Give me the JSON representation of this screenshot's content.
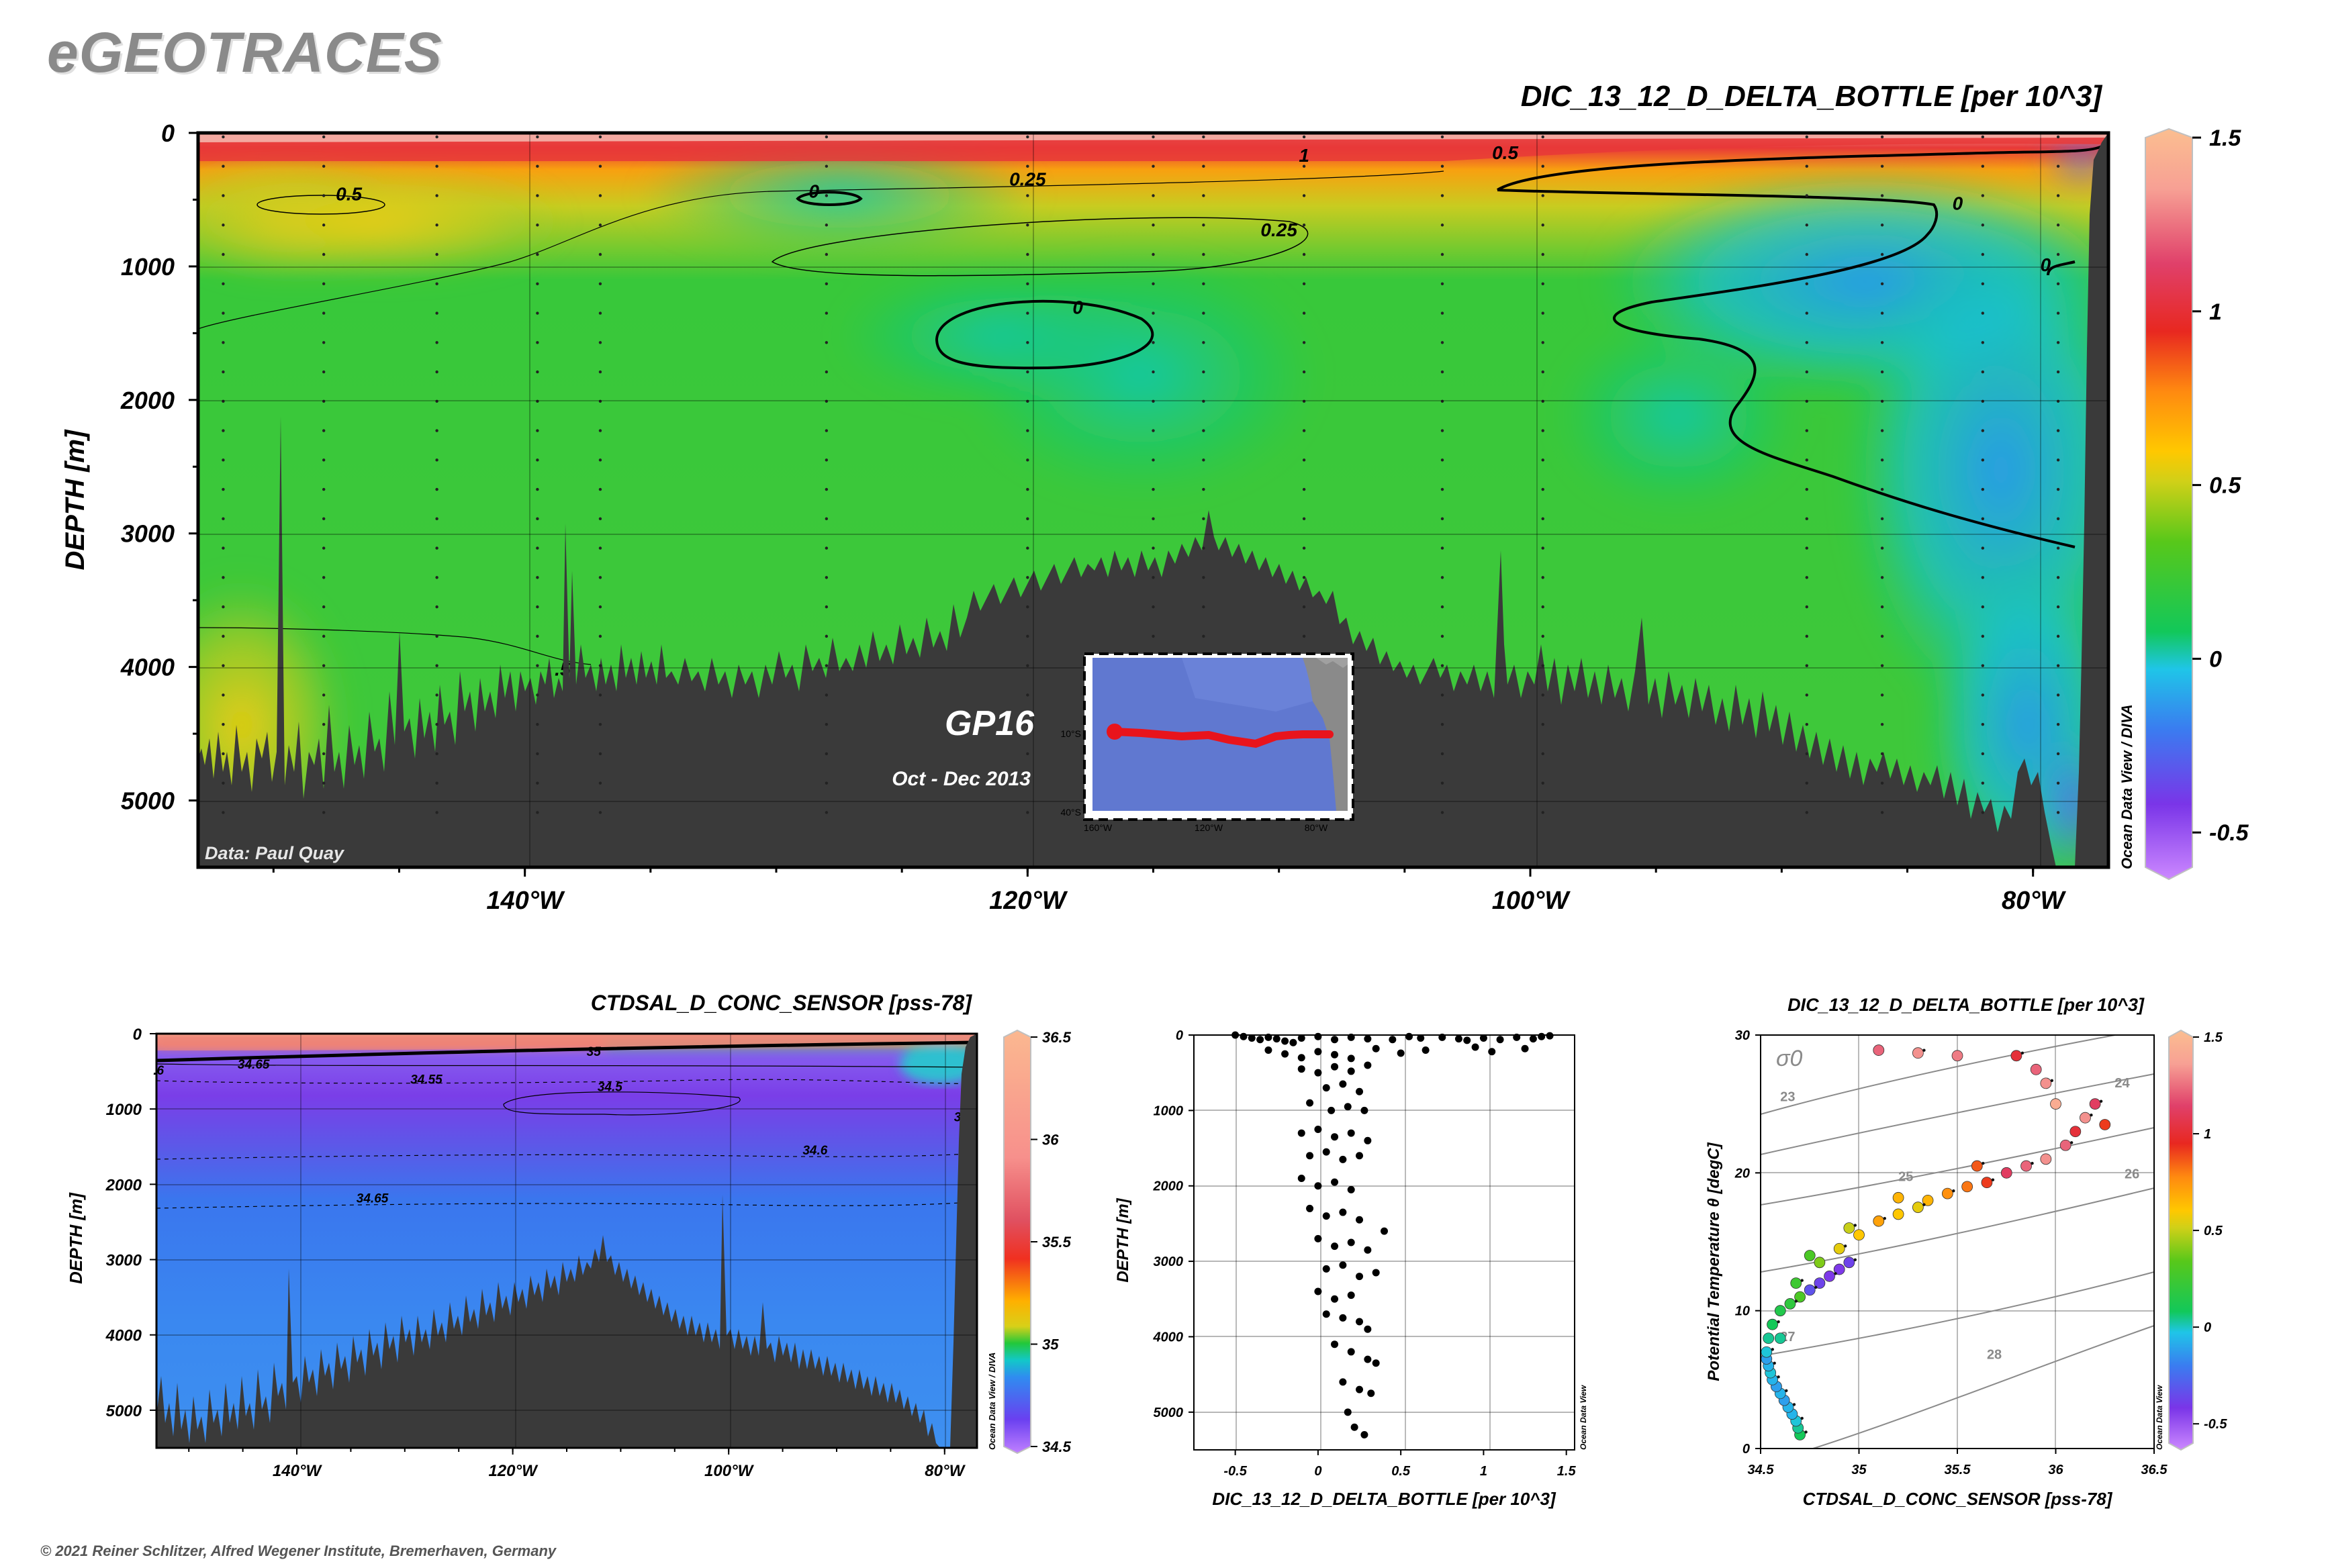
{
  "header": {
    "logo": "eGEOTRACES",
    "copyright": "© 2021 Reiner Schlitzer, Alfred Wegener Institute, Bremerhaven, Germany"
  },
  "main_section": {
    "title": "DIC_13_12_D_DELTA_BOTTLE [per 10^3]",
    "ylabel": "DEPTH [m]",
    "credit": "Data: Paul Quay",
    "cruise": "GP16",
    "dates": "Oct - Dec 2013",
    "watermark": "Ocean Data View / DIVA",
    "inset_labels": {
      "lat1": "10°S",
      "lat2": "40°S",
      "lon1": "160°W",
      "lon2": "120°W",
      "lon3": "80°W"
    }
  },
  "salinity_section": {
    "title": "CTDSAL_D_CONC_SENSOR [pss-78]",
    "ylabel": "DEPTH [m]",
    "watermark": "Ocean Data View / DIVA"
  },
  "profile_plot": {
    "xlabel": "DIC_13_12_D_DELTA_BOTTLE [per 10^3]",
    "ylabel": "DEPTH [m]",
    "watermark": "Ocean Data View"
  },
  "ts_plot": {
    "title": "DIC_13_12_D_DELTA_BOTTLE [per 10^3]",
    "xlabel": "CTDSAL_D_CONC_SENSOR [pss-78]",
    "ylabel": "Potential Temperature θ [degC]",
    "sigma_symbol": "σ0",
    "watermark": "Ocean Data View"
  },
  "colors": {
    "bathymetry": "#3a3a3a",
    "contour": "#000000",
    "track": "#e8141c"
  },
  "chart_data": [
    {
      "id": "main_section",
      "type": "heatmap",
      "title": "DIC_13_12_D_DELTA_BOTTLE [per 10^3]",
      "ylabel": "DEPTH [m]",
      "xlim": [
        -153,
        -77
      ],
      "ylim": [
        5500,
        0
      ],
      "xticks": [
        "140°W",
        "120°W",
        "100°W",
        "80°W"
      ],
      "xtick_values": [
        -140,
        -120,
        -100,
        -80
      ],
      "yticks": [
        "0",
        "1000",
        "2000",
        "3000",
        "4000",
        "5000"
      ],
      "ytick_values": [
        0,
        1000,
        2000,
        3000,
        4000,
        5000
      ],
      "colorbar": {
        "range": [
          -0.6,
          1.5
        ],
        "ticks": [
          "-0.5",
          "0",
          "0.5",
          "1",
          "1.5"
        ],
        "tick_values": [
          -0.5,
          0,
          0.5,
          1,
          1.5
        ]
      },
      "contour_labels": [
        "0.5",
        "0",
        "0.25",
        "1",
        "0.5",
        "0",
        "0.25",
        "0",
        "0",
        ".5"
      ],
      "contour_label_positions": [
        [
          -147,
          460
        ],
        [
          -128.5,
          440
        ],
        [
          -120,
          350
        ],
        [
          -109,
          170
        ],
        [
          -101,
          150
        ],
        [
          -83,
          530
        ],
        [
          -110,
          730
        ],
        [
          -118,
          1310
        ],
        [
          -79.5,
          990
        ],
        [
          -138.5,
          4020
        ]
      ],
      "fields": [
        {
          "x": -150,
          "y": 500,
          "v": 0.42
        },
        {
          "x": -148,
          "y": 2500,
          "v": 0.22
        },
        {
          "x": -150,
          "y": 4500,
          "v": 0.45
        },
        {
          "x": -140,
          "y": 400,
          "v": 0.4
        },
        {
          "x": -138,
          "y": 2000,
          "v": 0.2
        },
        {
          "x": -130,
          "y": 500,
          "v": 0.05
        },
        {
          "x": -125,
          "y": 1000,
          "v": 0.26
        },
        {
          "x": -118,
          "y": 1500,
          "v": -0.02
        },
        {
          "x": -110,
          "y": 1200,
          "v": 0.08
        },
        {
          "x": -112,
          "y": 2500,
          "v": 0.15
        },
        {
          "x": -100,
          "y": 700,
          "v": 0.06
        },
        {
          "x": -95,
          "y": 1800,
          "v": 0.1
        },
        {
          "x": -90,
          "y": 400,
          "v": -0.3
        },
        {
          "x": -86,
          "y": 1300,
          "v": -0.22
        },
        {
          "x": -82,
          "y": 2500,
          "v": -0.35
        },
        {
          "x": -79,
          "y": 4000,
          "v": -0.25
        },
        {
          "x": -90,
          "y": 3500,
          "v": 0.1
        },
        {
          "x": -143,
          "y": 3500,
          "v": 0.25
        }
      ]
    },
    {
      "id": "salinity_section",
      "type": "heatmap",
      "title": "CTDSAL_D_CONC_SENSOR [pss-78]",
      "ylabel": "DEPTH [m]",
      "xlim": [
        -153,
        -77
      ],
      "ylim": [
        5500,
        0
      ],
      "xticks": [
        "140°W",
        "120°W",
        "100°W",
        "80°W"
      ],
      "xtick_values": [
        -140,
        -120,
        -100,
        -80
      ],
      "yticks": [
        "0",
        "1000",
        "2000",
        "3000",
        "4000",
        "5000"
      ],
      "ytick_values": [
        0,
        1000,
        2000,
        3000,
        4000,
        5000
      ],
      "colorbar": {
        "range": [
          34.5,
          36.5
        ],
        "ticks": [
          "34.5",
          "35",
          "35.5",
          "36",
          "36.5"
        ],
        "tick_values": [
          34.5,
          35,
          35.5,
          36,
          36.5
        ]
      },
      "contour_labels": [
        "34.65",
        "34.55",
        "34.5",
        "34.6",
        "34.65",
        "35",
        ".6",
        "3"
      ],
      "contour_label_positions": [
        [
          -144,
          400
        ],
        [
          -128,
          600
        ],
        [
          -111,
          700
        ],
        [
          -92,
          1540
        ],
        [
          -133,
          2180
        ],
        [
          -112.5,
          230
        ],
        [
          -152.8,
          480
        ],
        [
          -78.8,
          1100
        ]
      ]
    },
    {
      "id": "profile_plot",
      "type": "scatter",
      "xlabel": "DIC_13_12_D_DELTA_BOTTLE [per 10^3]",
      "ylabel": "DEPTH [m]",
      "xlim": [
        -0.75,
        1.55
      ],
      "ylim": [
        5500,
        0
      ],
      "xticks": [
        "-0.5",
        "0",
        "0.5",
        "1",
        "1.5"
      ],
      "xtick_values": [
        -0.5,
        0,
        0.5,
        1,
        1.5
      ],
      "yticks": [
        "0",
        "1000",
        "2000",
        "3000",
        "4000",
        "5000"
      ],
      "ytick_values": [
        0,
        1000,
        2000,
        3000,
        4000,
        5000
      ],
      "x": [
        -0.5,
        -0.45,
        -0.4,
        -0.35,
        -0.3,
        -0.25,
        -0.2,
        -0.15,
        -0.1,
        0.0,
        0.1,
        0.2,
        0.3,
        0.45,
        0.55,
        0.62,
        0.75,
        0.85,
        0.9,
        1.0,
        1.1,
        1.2,
        1.3,
        1.35,
        1.4,
        -0.3,
        -0.2,
        -0.1,
        0.0,
        0.1,
        0.2,
        0.35,
        0.5,
        0.65,
        0.95,
        1.05,
        1.25,
        -0.1,
        0.0,
        0.1,
        0.2,
        0.3,
        0.05,
        0.15,
        0.25,
        -0.05,
        0.08,
        0.18,
        0.28,
        -0.1,
        0.0,
        0.1,
        0.2,
        0.3,
        -0.05,
        0.05,
        0.15,
        0.25,
        -0.1,
        0.0,
        0.1,
        0.2,
        -0.05,
        0.05,
        0.15,
        0.25,
        0.4,
        0.0,
        0.1,
        0.2,
        0.3,
        0.05,
        0.15,
        0.25,
        0.35,
        0.0,
        0.1,
        0.2,
        0.05,
        0.15,
        0.25,
        0.3,
        0.1,
        0.2,
        0.3,
        0.35,
        0.15,
        0.25,
        0.32,
        0.18,
        0.22,
        0.28
      ],
      "y": [
        0,
        20,
        40,
        60,
        30,
        50,
        80,
        100,
        40,
        20,
        60,
        30,
        50,
        60,
        20,
        40,
        30,
        50,
        70,
        40,
        60,
        30,
        50,
        20,
        10,
        200,
        250,
        300,
        220,
        260,
        310,
        180,
        240,
        200,
        160,
        220,
        180,
        450,
        500,
        420,
        480,
        400,
        700,
        650,
        750,
        900,
        1000,
        950,
        1000,
        1300,
        1250,
        1350,
        1300,
        1400,
        1600,
        1550,
        1650,
        1600,
        1900,
        2000,
        1950,
        2050,
        2300,
        2400,
        2350,
        2450,
        2600,
        2700,
        2800,
        2750,
        2850,
        3100,
        3050,
        3200,
        3150,
        3400,
        3500,
        3450,
        3700,
        3750,
        3800,
        3900,
        4100,
        4200,
        4300,
        4350,
        4600,
        4700,
        4750,
        5000,
        5200,
        5300
      ]
    },
    {
      "id": "ts_plot",
      "type": "scatter",
      "title": "DIC_13_12_D_DELTA_BOTTLE [per 10^3]",
      "xlabel": "CTDSAL_D_CONC_SENSOR [pss-78]",
      "ylabel": "Potential Temperature θ [degC]",
      "xlim": [
        34.5,
        36.5
      ],
      "ylim": [
        0,
        30
      ],
      "xticks": [
        "34.5",
        "35",
        "35.5",
        "36",
        "36.5"
      ],
      "xtick_values": [
        34.5,
        35,
        35.5,
        36,
        36.5
      ],
      "yticks": [
        "0",
        "10",
        "20",
        "30"
      ],
      "ytick_values": [
        0,
        10,
        20,
        30
      ],
      "colorbar": {
        "range": [
          -0.6,
          1.5
        ],
        "ticks": [
          "-0.5",
          "0",
          "0.5",
          "1",
          "1.5"
        ],
        "tick_values": [
          -0.5,
          0,
          0.5,
          1,
          1.5
        ]
      },
      "isopycnal_labels": [
        "23",
        "24",
        "25",
        "26",
        "27",
        "28"
      ],
      "isopycnal_label_positions": [
        [
          34.6,
          25.2
        ],
        [
          36.3,
          26.2
        ],
        [
          35.2,
          19.4
        ],
        [
          36.35,
          19.6
        ],
        [
          34.6,
          7.8
        ],
        [
          35.65,
          6.5
        ]
      ],
      "points": [
        {
          "s": 34.7,
          "t": 1.0,
          "c": 0.1
        },
        {
          "s": 34.69,
          "t": 1.5,
          "c": 0.05
        },
        {
          "s": 34.68,
          "t": 2.0,
          "c": 0.0
        },
        {
          "s": 34.66,
          "t": 2.5,
          "c": -0.05
        },
        {
          "s": 34.64,
          "t": 3.0,
          "c": -0.05
        },
        {
          "s": 34.62,
          "t": 3.5,
          "c": -0.1
        },
        {
          "s": 34.6,
          "t": 4.0,
          "c": -0.05
        },
        {
          "s": 34.58,
          "t": 4.5,
          "c": -0.1
        },
        {
          "s": 34.56,
          "t": 5.0,
          "c": -0.05
        },
        {
          "s": 34.55,
          "t": 5.5,
          "c": 0.0
        },
        {
          "s": 34.54,
          "t": 6.0,
          "c": -0.05
        },
        {
          "s": 34.53,
          "t": 6.5,
          "c": -0.1
        },
        {
          "s": 34.53,
          "t": 7.0,
          "c": 0.0
        },
        {
          "s": 34.54,
          "t": 8.0,
          "c": 0.05
        },
        {
          "s": 34.56,
          "t": 9.0,
          "c": 0.1
        },
        {
          "s": 34.6,
          "t": 10.0,
          "c": 0.15
        },
        {
          "s": 34.65,
          "t": 10.5,
          "c": 0.2
        },
        {
          "s": 34.7,
          "t": 11.0,
          "c": 0.3
        },
        {
          "s": 34.75,
          "t": 11.5,
          "c": -0.3
        },
        {
          "s": 34.8,
          "t": 12.0,
          "c": -0.35
        },
        {
          "s": 34.85,
          "t": 12.5,
          "c": -0.4
        },
        {
          "s": 34.9,
          "t": 13.0,
          "c": -0.4
        },
        {
          "s": 34.95,
          "t": 13.5,
          "c": -0.35
        },
        {
          "s": 34.8,
          "t": 13.5,
          "c": 0.4
        },
        {
          "s": 34.9,
          "t": 14.5,
          "c": 0.55
        },
        {
          "s": 35.0,
          "t": 15.5,
          "c": 0.6
        },
        {
          "s": 35.1,
          "t": 16.5,
          "c": 0.7
        },
        {
          "s": 35.2,
          "t": 17.0,
          "c": 0.6
        },
        {
          "s": 35.3,
          "t": 17.5,
          "c": 0.55
        },
        {
          "s": 35.35,
          "t": 18.0,
          "c": 0.65
        },
        {
          "s": 35.45,
          "t": 18.5,
          "c": 0.75
        },
        {
          "s": 35.55,
          "t": 19.0,
          "c": 0.8
        },
        {
          "s": 35.65,
          "t": 19.3,
          "c": 0.9
        },
        {
          "s": 35.75,
          "t": 20.0,
          "c": 1.1
        },
        {
          "s": 35.85,
          "t": 20.5,
          "c": 1.2
        },
        {
          "s": 35.95,
          "t": 21.0,
          "c": 1.3
        },
        {
          "s": 36.05,
          "t": 22.0,
          "c": 1.2
        },
        {
          "s": 36.1,
          "t": 23.0,
          "c": 1.0
        },
        {
          "s": 36.15,
          "t": 24.0,
          "c": 1.3
        },
        {
          "s": 36.0,
          "t": 25.0,
          "c": 1.4
        },
        {
          "s": 35.95,
          "t": 26.5,
          "c": 1.3
        },
        {
          "s": 35.9,
          "t": 27.5,
          "c": 1.2
        },
        {
          "s": 35.8,
          "t": 28.5,
          "c": 1.0
        },
        {
          "s": 35.5,
          "t": 28.5,
          "c": 1.25
        },
        {
          "s": 35.3,
          "t": 28.7,
          "c": 1.3
        },
        {
          "s": 35.1,
          "t": 28.9,
          "c": 1.2
        },
        {
          "s": 36.2,
          "t": 25.0,
          "c": 1.1
        },
        {
          "s": 36.25,
          "t": 23.5,
          "c": 0.9
        },
        {
          "s": 35.6,
          "t": 20.5,
          "c": 0.85
        },
        {
          "s": 35.2,
          "t": 18.2,
          "c": 0.65
        },
        {
          "s": 34.95,
          "t": 16.0,
          "c": 0.5
        },
        {
          "s": 34.75,
          "t": 14.0,
          "c": 0.3
        },
        {
          "s": 34.68,
          "t": 12.0,
          "c": 0.25
        },
        {
          "s": 34.6,
          "t": 8.0,
          "c": 0.05
        }
      ]
    }
  ]
}
